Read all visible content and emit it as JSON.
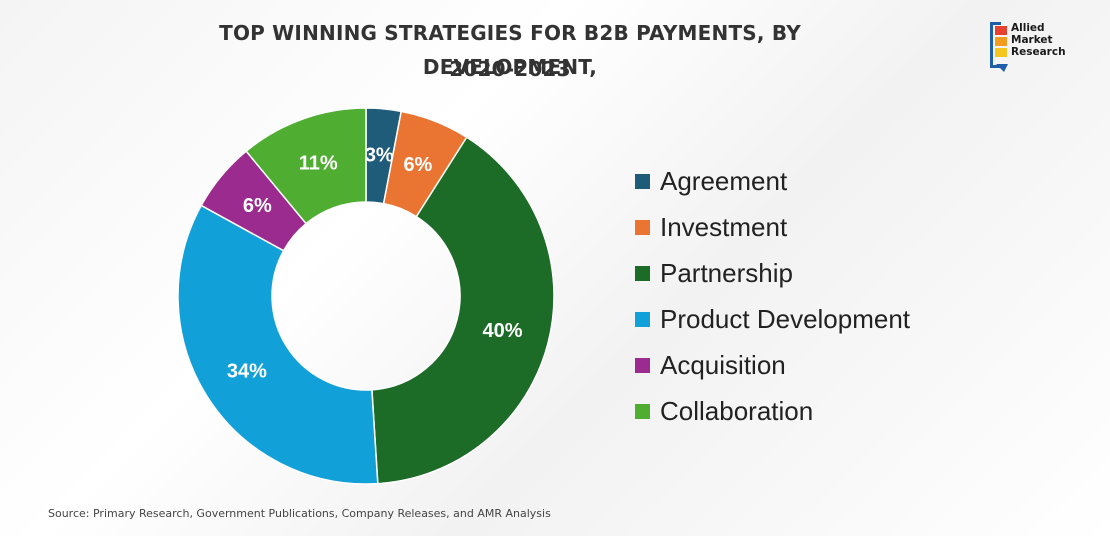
{
  "chart_data": {
    "type": "pie",
    "title_line1": "TOP WINNING STRATEGIES FOR B2B PAYMENTS, BY DEVELOPMENT,",
    "title_line2": "2020-2023",
    "slices": [
      {
        "label": "Agreement",
        "value": 3,
        "display": "3%",
        "color": "#1f5c7a"
      },
      {
        "label": "Investment",
        "value": 6,
        "display": "6%",
        "color": "#ea7533"
      },
      {
        "label": "Partnership",
        "value": 40,
        "display": "40%",
        "color": "#1c6b27"
      },
      {
        "label": "Product Development",
        "value": 34,
        "display": "34%",
        "color": "#12a0d8"
      },
      {
        "label": "Acquisition",
        "value": 6,
        "display": "6%",
        "color": "#9b2b8f"
      },
      {
        "label": "Collaboration",
        "value": 11,
        "display": "11%",
        "color": "#4fad32"
      }
    ],
    "legend_position": "right"
  },
  "source": "Source: Primary Research, Government Publications, Company Releases, and AMR Analysis",
  "logo": {
    "line1": "Allied",
    "line2": "Market",
    "line3": "Research",
    "colors": [
      "#e8412f",
      "#f39c1f",
      "#f6c51e"
    ]
  }
}
